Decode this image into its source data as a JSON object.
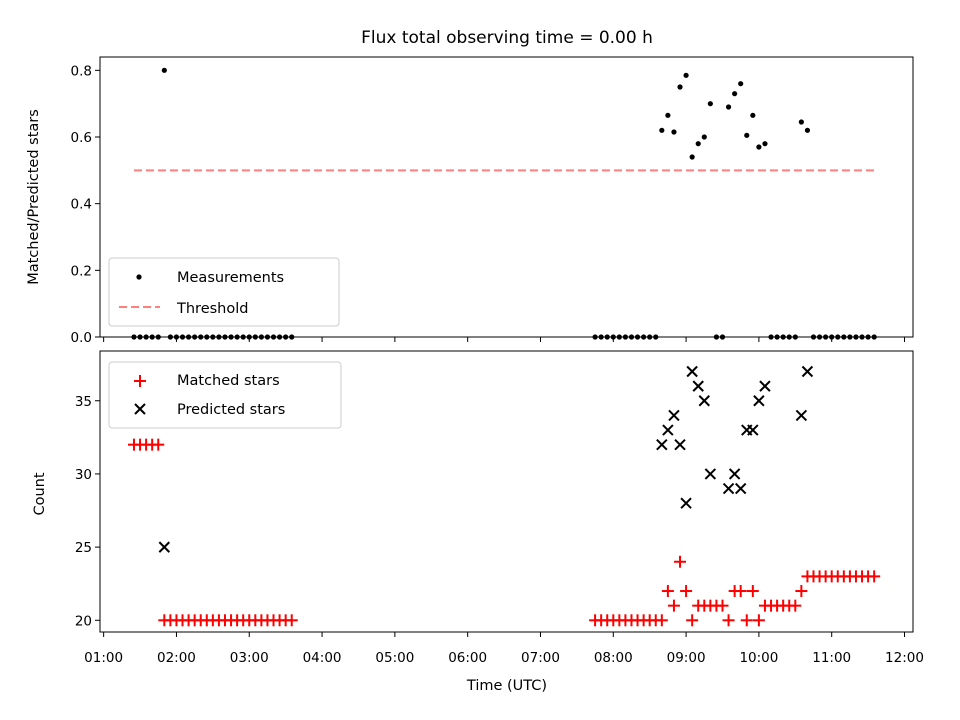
{
  "chart_data": [
    {
      "type": "scatter",
      "title": "Flux total observing time = 0.00 h",
      "xlabel": "",
      "ylabel": "Matched/Predicted stars",
      "xlim": [
        "00:57",
        "12:07"
      ],
      "ylim": [
        0,
        0.84
      ],
      "yticks": [
        "0.0",
        "0.2",
        "0.4",
        "0.6",
        "0.8"
      ],
      "grid": false,
      "legend": {
        "placement": "lower-left",
        "entries": [
          "Measurements",
          "Threshold"
        ]
      },
      "series": [
        {
          "name": "Measurements",
          "marker": "dot",
          "color": "#000000",
          "points": [
            [
              "01:25",
              0
            ],
            [
              "01:30",
              0
            ],
            [
              "01:35",
              0
            ],
            [
              "01:40",
              0
            ],
            [
              "01:45",
              0
            ],
            [
              "01:50",
              0.8
            ],
            [
              "01:55",
              0
            ],
            [
              "02:00",
              0
            ],
            [
              "02:05",
              0
            ],
            [
              "02:10",
              0
            ],
            [
              "02:15",
              0
            ],
            [
              "02:20",
              0
            ],
            [
              "02:25",
              0
            ],
            [
              "02:30",
              0
            ],
            [
              "02:35",
              0
            ],
            [
              "02:40",
              0
            ],
            [
              "02:45",
              0
            ],
            [
              "02:50",
              0
            ],
            [
              "02:55",
              0
            ],
            [
              "03:00",
              0
            ],
            [
              "03:05",
              0
            ],
            [
              "03:10",
              0
            ],
            [
              "03:15",
              0
            ],
            [
              "03:20",
              0
            ],
            [
              "03:25",
              0
            ],
            [
              "03:30",
              0
            ],
            [
              "03:35",
              0
            ],
            [
              "07:45",
              0
            ],
            [
              "07:50",
              0
            ],
            [
              "07:55",
              0
            ],
            [
              "08:00",
              0
            ],
            [
              "08:05",
              0
            ],
            [
              "08:10",
              0
            ],
            [
              "08:15",
              0
            ],
            [
              "08:20",
              0
            ],
            [
              "08:25",
              0
            ],
            [
              "08:30",
              0
            ],
            [
              "08:35",
              0
            ],
            [
              "08:40",
              0.62
            ],
            [
              "08:45",
              0.665
            ],
            [
              "08:50",
              0.615
            ],
            [
              "08:55",
              0.75
            ],
            [
              "09:00",
              0.785
            ],
            [
              "09:05",
              0.54
            ],
            [
              "09:10",
              0.58
            ],
            [
              "09:15",
              0.6
            ],
            [
              "09:20",
              0.7
            ],
            [
              "09:25",
              0
            ],
            [
              "09:30",
              0
            ],
            [
              "09:35",
              0.69
            ],
            [
              "09:40",
              0.73
            ],
            [
              "09:45",
              0.76
            ],
            [
              "09:50",
              0.605
            ],
            [
              "09:55",
              0.665
            ],
            [
              "10:00",
              0.57
            ],
            [
              "10:05",
              0.58
            ],
            [
              "10:10",
              0
            ],
            [
              "10:15",
              0
            ],
            [
              "10:20",
              0
            ],
            [
              "10:25",
              0
            ],
            [
              "10:30",
              0
            ],
            [
              "10:35",
              0.645
            ],
            [
              "10:40",
              0.62
            ],
            [
              "10:45",
              0
            ],
            [
              "10:50",
              0
            ],
            [
              "10:55",
              0
            ],
            [
              "11:00",
              0
            ],
            [
              "11:05",
              0
            ],
            [
              "11:10",
              0
            ],
            [
              "11:15",
              0
            ],
            [
              "11:20",
              0
            ],
            [
              "11:25",
              0
            ],
            [
              "11:30",
              0
            ],
            [
              "11:35",
              0
            ]
          ]
        },
        {
          "name": "Threshold",
          "style": "dashed-line",
          "color": "#ff7f7f",
          "points": [
            [
              "01:25",
              0.5
            ],
            [
              "11:35",
              0.5
            ]
          ]
        }
      ]
    },
    {
      "type": "scatter",
      "title": "",
      "xlabel": "Time (UTC)",
      "ylabel": "Count",
      "xlim": [
        "00:57",
        "12:07"
      ],
      "ylim": [
        19.2,
        38.4
      ],
      "xticks": [
        "01:00",
        "02:00",
        "03:00",
        "04:00",
        "05:00",
        "06:00",
        "07:00",
        "08:00",
        "09:00",
        "10:00",
        "11:00",
        "12:00"
      ],
      "yticks": [
        "20",
        "25",
        "30",
        "35"
      ],
      "grid": false,
      "legend": {
        "placement": "upper-left",
        "entries": [
          "Matched stars",
          "Predicted stars"
        ]
      },
      "series": [
        {
          "name": "Matched stars",
          "marker": "plus",
          "color": "#ff0000",
          "points": [
            [
              "01:25",
              32
            ],
            [
              "01:30",
              32
            ],
            [
              "01:35",
              32
            ],
            [
              "01:40",
              32
            ],
            [
              "01:45",
              32
            ],
            [
              "01:50",
              20
            ],
            [
              "01:55",
              20
            ],
            [
              "02:00",
              20
            ],
            [
              "02:05",
              20
            ],
            [
              "02:10",
              20
            ],
            [
              "02:15",
              20
            ],
            [
              "02:20",
              20
            ],
            [
              "02:25",
              20
            ],
            [
              "02:30",
              20
            ],
            [
              "02:35",
              20
            ],
            [
              "02:40",
              20
            ],
            [
              "02:45",
              20
            ],
            [
              "02:50",
              20
            ],
            [
              "02:55",
              20
            ],
            [
              "03:00",
              20
            ],
            [
              "03:05",
              20
            ],
            [
              "03:10",
              20
            ],
            [
              "03:15",
              20
            ],
            [
              "03:20",
              20
            ],
            [
              "03:25",
              20
            ],
            [
              "03:30",
              20
            ],
            [
              "03:35",
              20
            ],
            [
              "07:45",
              20
            ],
            [
              "07:50",
              20
            ],
            [
              "07:55",
              20
            ],
            [
              "08:00",
              20
            ],
            [
              "08:05",
              20
            ],
            [
              "08:10",
              20
            ],
            [
              "08:15",
              20
            ],
            [
              "08:20",
              20
            ],
            [
              "08:25",
              20
            ],
            [
              "08:30",
              20
            ],
            [
              "08:35",
              20
            ],
            [
              "08:40",
              20
            ],
            [
              "08:45",
              22
            ],
            [
              "08:50",
              21
            ],
            [
              "08:55",
              24
            ],
            [
              "09:00",
              22
            ],
            [
              "09:05",
              20
            ],
            [
              "09:10",
              21
            ],
            [
              "09:15",
              21
            ],
            [
              "09:20",
              21
            ],
            [
              "09:25",
              21
            ],
            [
              "09:30",
              21
            ],
            [
              "09:35",
              20
            ],
            [
              "09:40",
              22
            ],
            [
              "09:45",
              22
            ],
            [
              "09:50",
              20
            ],
            [
              "09:55",
              22
            ],
            [
              "10:00",
              20
            ],
            [
              "10:05",
              21
            ],
            [
              "10:10",
              21
            ],
            [
              "10:15",
              21
            ],
            [
              "10:20",
              21
            ],
            [
              "10:25",
              21
            ],
            [
              "10:30",
              21
            ],
            [
              "10:35",
              22
            ],
            [
              "10:40",
              23
            ],
            [
              "10:45",
              23
            ],
            [
              "10:50",
              23
            ],
            [
              "10:55",
              23
            ],
            [
              "11:00",
              23
            ],
            [
              "11:05",
              23
            ],
            [
              "11:10",
              23
            ],
            [
              "11:15",
              23
            ],
            [
              "11:20",
              23
            ],
            [
              "11:25",
              23
            ],
            [
              "11:30",
              23
            ],
            [
              "11:35",
              23
            ]
          ]
        },
        {
          "name": "Predicted stars",
          "marker": "x",
          "color": "#000000",
          "points": [
            [
              "01:50",
              25
            ],
            [
              "08:40",
              32
            ],
            [
              "08:45",
              33
            ],
            [
              "08:50",
              34
            ],
            [
              "08:55",
              32
            ],
            [
              "09:00",
              28
            ],
            [
              "09:05",
              37
            ],
            [
              "09:10",
              36
            ],
            [
              "09:15",
              35
            ],
            [
              "09:20",
              30
            ],
            [
              "09:35",
              29
            ],
            [
              "09:40",
              30
            ],
            [
              "09:45",
              29
            ],
            [
              "09:50",
              33
            ],
            [
              "09:55",
              33
            ],
            [
              "10:00",
              35
            ],
            [
              "10:05",
              36
            ],
            [
              "10:35",
              34
            ],
            [
              "10:40",
              37
            ]
          ]
        }
      ]
    }
  ]
}
